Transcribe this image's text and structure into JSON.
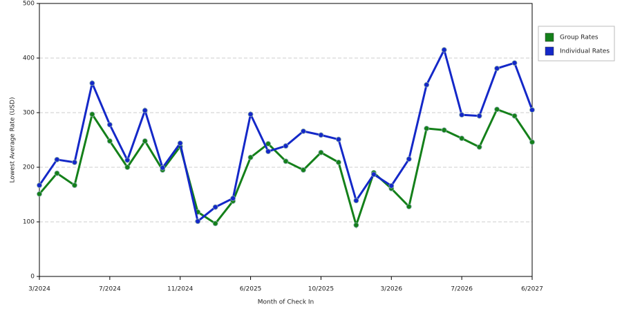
{
  "chart_data": {
    "type": "line",
    "x_label": "Month of Check In",
    "y_label": "Lowest Average Rate (USD)",
    "categories": [
      "3/2024",
      null,
      null,
      null,
      "7/2024",
      null,
      null,
      null,
      "11/2024",
      null,
      null,
      null,
      "6/2025",
      null,
      null,
      null,
      "10/2025",
      null,
      null,
      null,
      "3/2026",
      null,
      null,
      null,
      "7/2026",
      null,
      null,
      null,
      "6/2027"
    ],
    "series": [
      {
        "name": "Group Rates",
        "color": "#14801a",
        "values": [
          151,
          189,
          167,
          297,
          248,
          200,
          248,
          195,
          238,
          118,
          97,
          138,
          218,
          243,
          211,
          195,
          227,
          209,
          94,
          190,
          161,
          128,
          271,
          268,
          253,
          237,
          306,
          294,
          246
        ]
      },
      {
        "name": "Individual Rates",
        "color": "#1428c8",
        "values": [
          167,
          214,
          209,
          354,
          278,
          213,
          304,
          199,
          244,
          101,
          127,
          143,
          297,
          229,
          239,
          266,
          259,
          251,
          139,
          187,
          166,
          215,
          351,
          415,
          296,
          294,
          381,
          391,
          305
        ]
      }
    ],
    "ylim": [
      0,
      500
    ],
    "yticks": [
      0,
      100,
      200,
      300,
      400,
      500
    ],
    "grid": true,
    "legend": "right"
  }
}
